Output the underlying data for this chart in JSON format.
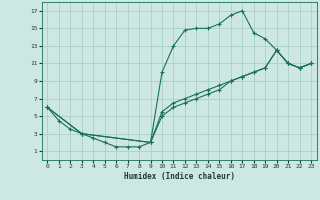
{
  "xlabel": "Humidex (Indice chaleur)",
  "bg_color": "#cce8e0",
  "grid_color": "#aacfc8",
  "line_color": "#1a6e60",
  "xlim": [
    -0.5,
    23.5
  ],
  "ylim": [
    0,
    18
  ],
  "xticks": [
    0,
    1,
    2,
    3,
    4,
    5,
    6,
    7,
    8,
    9,
    10,
    11,
    12,
    13,
    14,
    15,
    16,
    17,
    18,
    19,
    20,
    21,
    22,
    23
  ],
  "yticks": [
    1,
    3,
    5,
    7,
    9,
    11,
    13,
    15,
    17
  ],
  "line1_x": [
    0,
    1,
    2,
    3,
    4,
    5,
    6,
    7,
    8,
    9,
    10,
    11,
    12,
    13,
    14,
    15,
    16,
    17,
    18,
    19,
    20,
    21,
    22,
    23
  ],
  "line1_y": [
    6,
    4.5,
    3.5,
    3,
    2.5,
    2,
    1.5,
    1.5,
    1.5,
    2,
    10,
    13,
    14.8,
    15,
    15,
    15.5,
    16.5,
    17,
    14.5,
    13.8,
    12.5,
    11,
    10.5,
    11
  ],
  "line2_x": [
    0,
    3,
    9,
    10,
    11,
    12,
    13,
    14,
    15,
    16,
    17,
    18,
    19,
    20,
    21,
    22,
    23
  ],
  "line2_y": [
    6,
    3,
    2,
    5.5,
    6.5,
    7,
    7.5,
    8,
    8.5,
    9,
    9.5,
    10,
    10.5,
    12.5,
    11,
    10.5,
    11
  ],
  "line3_x": [
    0,
    3,
    9,
    10,
    11,
    12,
    13,
    14,
    15,
    16,
    17,
    18,
    19,
    20,
    21,
    22,
    23
  ],
  "line3_y": [
    6,
    3,
    2,
    5,
    6,
    6.5,
    7,
    7.5,
    8,
    9,
    9.5,
    10,
    10.5,
    12.5,
    11,
    10.5,
    11
  ]
}
